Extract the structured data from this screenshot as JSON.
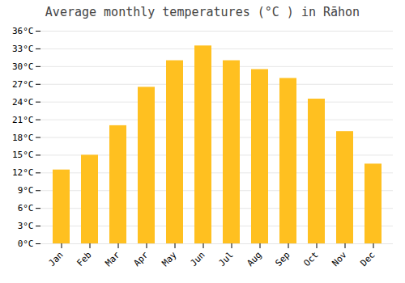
{
  "chart_data": {
    "type": "bar",
    "title": "Average monthly temperatures (°C ) in Rāhon",
    "categories": [
      "Jan",
      "Feb",
      "Mar",
      "Apr",
      "May",
      "Jun",
      "Jul",
      "Aug",
      "Sep",
      "Oct",
      "Nov",
      "Dec"
    ],
    "values": [
      12.5,
      15.0,
      20.0,
      26.5,
      31.0,
      33.5,
      31.0,
      29.5,
      28.0,
      24.5,
      19.0,
      13.5
    ],
    "color": "#FFC020",
    "ylim": [
      0,
      36
    ],
    "yticks": [
      {
        "value": 0,
        "label": "0°C"
      },
      {
        "value": 3,
        "label": "3°C"
      },
      {
        "value": 6,
        "label": "6°C"
      },
      {
        "value": 9,
        "label": "9°C"
      },
      {
        "value": 12,
        "label": "12°C"
      },
      {
        "value": 15,
        "label": "15°C"
      },
      {
        "value": 18,
        "label": "18°C"
      },
      {
        "value": 21,
        "label": "21°C"
      },
      {
        "value": 24,
        "label": "24°C"
      },
      {
        "value": 27,
        "label": "27°C"
      },
      {
        "value": 30,
        "label": "30°C"
      },
      {
        "value": 33,
        "label": "33°C"
      },
      {
        "value": 36,
        "label": "36°C"
      }
    ],
    "grid": true
  }
}
